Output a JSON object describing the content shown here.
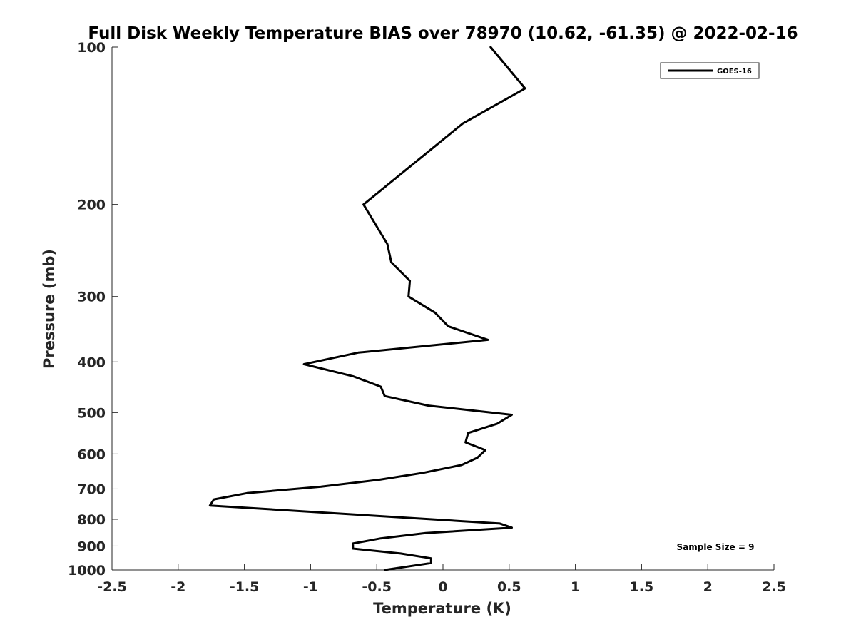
{
  "chart_data": {
    "type": "line",
    "title": "Full Disk Weekly Temperature BIAS over 78970 (10.62, -61.35) @ 2022-02-16",
    "xlabel": "Temperature (K)",
    "ylabel": "Pressure (mb)",
    "xlim": [
      -2.5,
      2.5
    ],
    "ylim": [
      100,
      1000
    ],
    "yscale": "log",
    "yreversed": true,
    "xticks": [
      "-2.5",
      "-2",
      "-1.5",
      "-1",
      "-0.5",
      "0",
      "0.5",
      "1",
      "1.5",
      "2",
      "2.5"
    ],
    "xtick_values": [
      -2.5,
      -2,
      -1.5,
      -1,
      -0.5,
      0,
      0.5,
      1,
      1.5,
      2,
      2.5
    ],
    "yticks": [
      "100",
      "200",
      "300",
      "400",
      "500",
      "600",
      "700",
      "800",
      "900",
      "1000"
    ],
    "ytick_values": [
      100,
      200,
      300,
      400,
      500,
      600,
      700,
      800,
      900,
      1000
    ],
    "grid": false,
    "legend_position": "top-right",
    "series": [
      {
        "name": "GOES-16",
        "color": "#000000",
        "points": [
          [
            0.36,
            100
          ],
          [
            0.62,
            120
          ],
          [
            0.15,
            140
          ],
          [
            -0.6,
            200
          ],
          [
            -0.42,
            238
          ],
          [
            -0.39,
            258
          ],
          [
            -0.25,
            280
          ],
          [
            -0.26,
            300
          ],
          [
            -0.06,
            322
          ],
          [
            0.04,
            342
          ],
          [
            0.34,
            363
          ],
          [
            -0.64,
            384
          ],
          [
            -1.05,
            404
          ],
          [
            -0.68,
            426
          ],
          [
            -0.47,
            446
          ],
          [
            -0.44,
            465
          ],
          [
            -0.11,
            485
          ],
          [
            0.52,
            505
          ],
          [
            0.41,
            525
          ],
          [
            0.19,
            547
          ],
          [
            0.17,
            570
          ],
          [
            0.32,
            590
          ],
          [
            0.26,
            610
          ],
          [
            0.14,
            630
          ],
          [
            -0.15,
            652
          ],
          [
            -0.48,
            672
          ],
          [
            -0.92,
            693
          ],
          [
            -1.48,
            713
          ],
          [
            -1.73,
            733
          ],
          [
            -1.76,
            753
          ],
          [
            0.43,
            815
          ],
          [
            0.52,
            830
          ],
          [
            -0.13,
            850
          ],
          [
            -0.47,
            870
          ],
          [
            -0.68,
            890
          ],
          [
            -0.68,
            910
          ],
          [
            -0.32,
            930
          ],
          [
            -0.09,
            950
          ],
          [
            -0.09,
            970
          ],
          [
            -0.44,
            1000
          ]
        ]
      }
    ],
    "annotations": [
      {
        "text": "Sample Size = 9"
      }
    ]
  }
}
